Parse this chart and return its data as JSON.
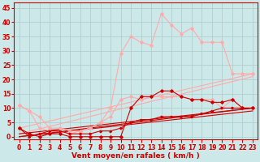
{
  "background_color": "#cde8e8",
  "grid_color": "#aacccc",
  "xlabel": "Vent moyen/en rafales ( km/h )",
  "xlabel_color": "#cc0000",
  "xlabel_fontsize": 6.5,
  "tick_color": "#cc0000",
  "tick_fontsize": 5.5,
  "ylim": [
    -1,
    47
  ],
  "xlim": [
    -0.5,
    23.5
  ],
  "yticks": [
    0,
    5,
    10,
    15,
    20,
    25,
    30,
    35,
    40,
    45
  ],
  "xticks": [
    0,
    1,
    2,
    3,
    4,
    5,
    6,
    7,
    8,
    9,
    10,
    11,
    12,
    13,
    14,
    15,
    16,
    17,
    18,
    19,
    20,
    21,
    22,
    23
  ],
  "series": [
    {
      "x": [
        0,
        1,
        2,
        3,
        4,
        5,
        6,
        7,
        8,
        9,
        10,
        11,
        12,
        13,
        14,
        15,
        16,
        17,
        18,
        19,
        20,
        21,
        22,
        23
      ],
      "y": [
        11,
        9,
        3,
        2,
        2,
        1,
        2,
        3,
        5,
        10,
        29,
        35,
        33,
        32,
        43,
        39,
        36,
        38,
        33,
        33,
        33,
        22,
        22,
        22
      ],
      "color": "#ffaaaa",
      "linewidth": 0.8,
      "marker": "D",
      "markersize": 1.8,
      "zorder": 4
    },
    {
      "x": [
        0,
        23
      ],
      "y": [
        3,
        22
      ],
      "color": "#ffaaaa",
      "linewidth": 0.8,
      "marker": null,
      "markersize": 0,
      "zorder": 2
    },
    {
      "x": [
        0,
        23
      ],
      "y": [
        1,
        21
      ],
      "color": "#ffaaaa",
      "linewidth": 0.8,
      "marker": null,
      "markersize": 0,
      "zorder": 2
    },
    {
      "x": [
        0,
        1,
        2,
        3,
        4,
        5,
        6,
        7,
        8,
        9,
        10,
        11,
        12,
        13,
        14,
        15,
        16,
        17,
        18,
        19,
        20,
        21,
        22,
        23
      ],
      "y": [
        11,
        9,
        7,
        3,
        3,
        2,
        2,
        3,
        5,
        7,
        13,
        14,
        13,
        14,
        14,
        14,
        14,
        13,
        13,
        13,
        10,
        13,
        10,
        10
      ],
      "color": "#ffaaaa",
      "linewidth": 0.8,
      "marker": "D",
      "markersize": 1.8,
      "zorder": 4
    },
    {
      "x": [
        0,
        1,
        2,
        3,
        4,
        5,
        6,
        7,
        8,
        9,
        10,
        11,
        12,
        13,
        14,
        15,
        16,
        17,
        18,
        19,
        20,
        21,
        22,
        23
      ],
      "y": [
        3,
        1,
        0,
        1,
        1,
        0,
        0,
        0,
        0,
        0,
        0,
        10,
        14,
        14,
        16,
        16,
        14,
        13,
        13,
        12,
        12,
        13,
        10,
        10
      ],
      "color": "#cc0000",
      "linewidth": 0.8,
      "marker": "D",
      "markersize": 1.8,
      "zorder": 5
    },
    {
      "x": [
        0,
        1,
        2,
        3,
        4,
        5,
        6,
        7,
        8,
        9,
        10,
        11,
        12,
        13,
        14,
        15,
        16,
        17,
        18,
        19,
        20,
        21,
        22,
        23
      ],
      "y": [
        3,
        0,
        1,
        2,
        2,
        1,
        1,
        1,
        2,
        2,
        3,
        5,
        6,
        6,
        7,
        7,
        7,
        7,
        8,
        9,
        10,
        10,
        10,
        10
      ],
      "color": "#cc0000",
      "linewidth": 0.8,
      "marker": ">",
      "markersize": 1.8,
      "zorder": 4
    },
    {
      "x": [
        0,
        23
      ],
      "y": [
        0,
        10
      ],
      "color": "#cc0000",
      "linewidth": 0.8,
      "marker": null,
      "markersize": 0,
      "zorder": 3
    },
    {
      "x": [
        0,
        23
      ],
      "y": [
        0,
        9
      ],
      "color": "#cc0000",
      "linewidth": 0.8,
      "marker": null,
      "markersize": 0,
      "zorder": 3
    },
    {
      "x": [
        0,
        23
      ],
      "y": [
        1,
        10
      ],
      "color": "#cc0000",
      "linewidth": 0.8,
      "marker": null,
      "markersize": 0,
      "zorder": 3
    }
  ]
}
